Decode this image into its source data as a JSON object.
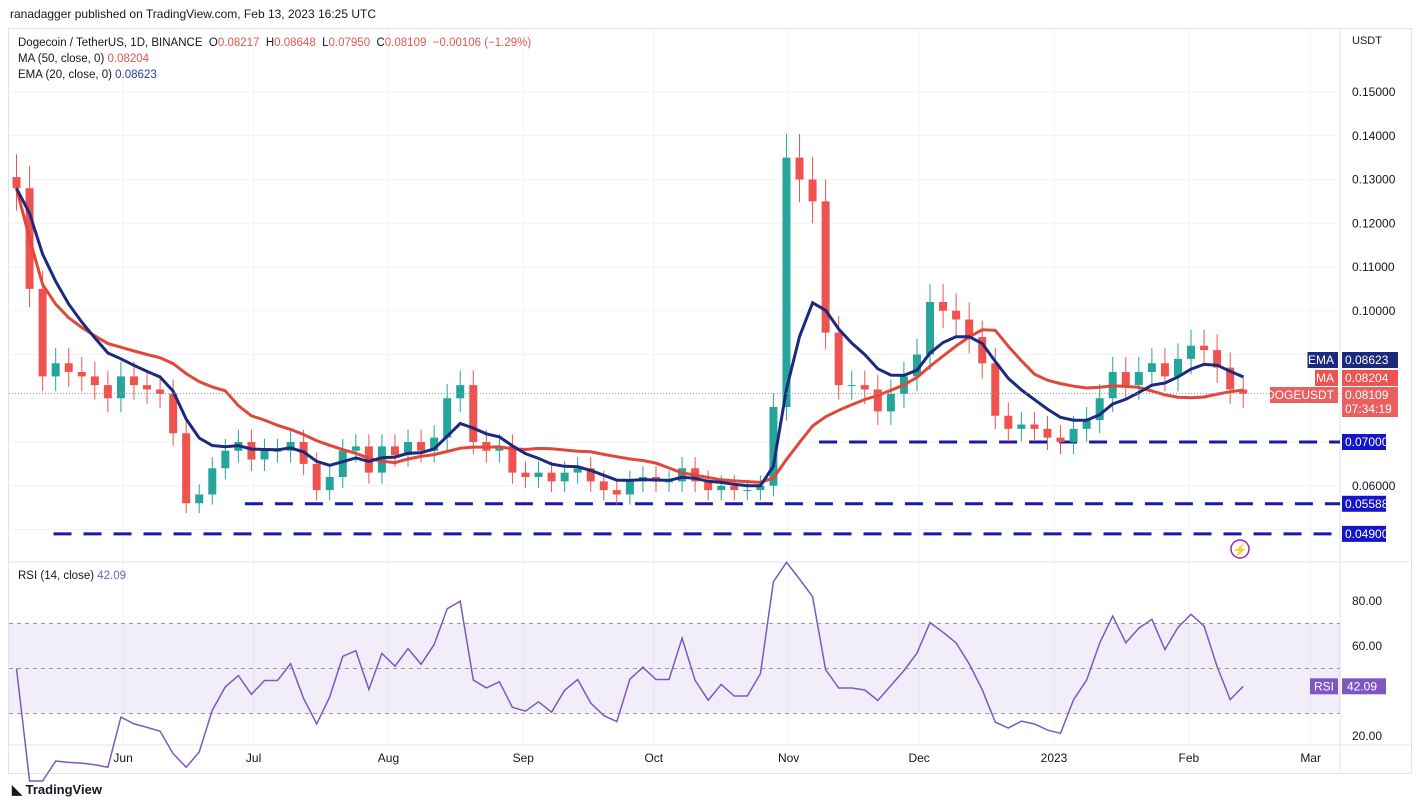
{
  "published": "ranadagger published on TradingView.com, Feb 13, 2023 16:25 UTC",
  "legend": {
    "symbol": "Dogecoin / TetherUS, 1D, BINANCE",
    "o_label": "O",
    "o": "0.08217",
    "h_label": "H",
    "h": "0.08648",
    "l_label": "L",
    "l": "0.07950",
    "c_label": "C",
    "c": "0.08109",
    "change": "−0.00106 (−1.29%)",
    "ma_label": "MA (50, close, 0)",
    "ma_value": "0.08204",
    "ema_label": "EMA (20, close, 0)",
    "ema_value": "0.08623"
  },
  "rsi_legend": {
    "label": "RSI (14, close)",
    "value": "42.09"
  },
  "logo": "TradingView",
  "colors": {
    "up": "#26a69a",
    "down": "#ef5350",
    "ma": "#e0483a",
    "ema": "#1b2a7c",
    "level": "#1a1aa8",
    "rsi": "#7e57c2"
  },
  "chart_data": {
    "type": "candlestick",
    "symbol": "DOGEUSDT",
    "currency_label": "USDT",
    "bar_interval_days": 3,
    "start_date": "2022-05-06",
    "closes": [
      0.128,
      0.105,
      0.085,
      0.088,
      0.086,
      0.085,
      0.083,
      0.08,
      0.085,
      0.083,
      0.082,
      0.081,
      0.072,
      0.056,
      0.058,
      0.064,
      0.068,
      0.07,
      0.066,
      0.068,
      0.068,
      0.07,
      0.065,
      0.059,
      0.062,
      0.068,
      0.069,
      0.063,
      0.069,
      0.067,
      0.07,
      0.068,
      0.071,
      0.08,
      0.083,
      0.07,
      0.068,
      0.069,
      0.063,
      0.062,
      0.063,
      0.061,
      0.063,
      0.064,
      0.061,
      0.059,
      0.058,
      0.061,
      0.062,
      0.061,
      0.061,
      0.064,
      0.061,
      0.059,
      0.06,
      0.059,
      0.059,
      0.06,
      0.078,
      0.135,
      0.13,
      0.125,
      0.095,
      0.083,
      0.083,
      0.082,
      0.077,
      0.081,
      0.085,
      0.09,
      0.102,
      0.1,
      0.098,
      0.094,
      0.088,
      0.076,
      0.073,
      0.074,
      0.073,
      0.071,
      0.07,
      0.073,
      0.075,
      0.08,
      0.086,
      0.083,
      0.086,
      0.088,
      0.085,
      0.089,
      0.092,
      0.091,
      0.087,
      0.082,
      0.081
    ],
    "ylim": [
      0.045,
      0.16
    ],
    "y_ticks": [
      "0.15000",
      "0.14000",
      "0.13000",
      "0.12000",
      "0.11000",
      "0.10000",
      "0.06000"
    ],
    "y_tick_values": [
      0.15,
      0.14,
      0.13,
      0.12,
      0.11,
      0.1,
      0.06
    ],
    "x_ticks": [
      {
        "label": "Jun",
        "day": 26
      },
      {
        "label": "Jul",
        "day": 56
      },
      {
        "label": "Aug",
        "day": 87
      },
      {
        "label": "Sep",
        "day": 118
      },
      {
        "label": "Oct",
        "day": 148
      },
      {
        "label": "Nov",
        "day": 179
      },
      {
        "label": "Dec",
        "day": 209
      },
      {
        "label": "2023",
        "day": 240
      },
      {
        "label": "Feb",
        "day": 271
      },
      {
        "label": "Mar",
        "day": 299
      }
    ],
    "levels": [
      {
        "value": 0.07,
        "label": "0.07000",
        "from_day": 186
      },
      {
        "value": 0.05588,
        "label": "0.05588",
        "from_day": 54
      },
      {
        "value": 0.049,
        "label": "0.04900",
        "from_day": 10
      }
    ],
    "price_labels": [
      {
        "name": "EMA",
        "value": "0.08623",
        "v": 0.08623,
        "kind": "ema"
      },
      {
        "name": "MA",
        "value": "0.08204",
        "v": 0.08204,
        "kind": "ma"
      },
      {
        "name": "DOGEUSDT",
        "value": "0.08109",
        "countdown": "07:34:19",
        "v": 0.08109,
        "kind": "last"
      }
    ],
    "ma_period_bars": 17,
    "ema_period_bars": 7,
    "rsi": {
      "ylim": [
        10,
        100
      ],
      "ticks": [
        "80.00",
        "60.00",
        "20.00"
      ],
      "tick_values": [
        80,
        60,
        20
      ],
      "band": [
        30,
        70
      ],
      "mid": 50,
      "period_bars": 5,
      "label": "RSI",
      "value": "42.09"
    }
  }
}
